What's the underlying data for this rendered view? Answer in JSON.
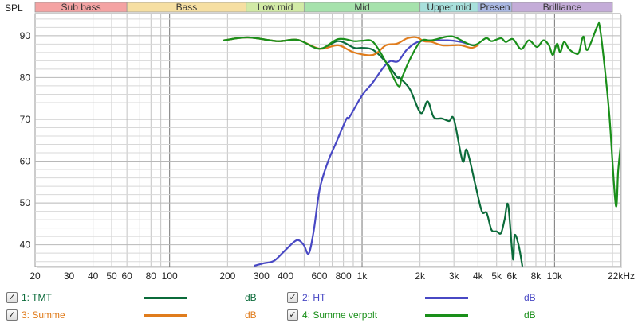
{
  "chart_data": {
    "type": "line",
    "ylabel": "SPL",
    "xscale": "log",
    "xlim": [
      20,
      22000
    ],
    "ylim": [
      34.8,
      95.3
    ],
    "grid": true,
    "x_ticks": [
      {
        "v": 20,
        "label": "20"
      },
      {
        "v": 30,
        "label": "30"
      },
      {
        "v": 40,
        "label": "40"
      },
      {
        "v": 50,
        "label": "50"
      },
      {
        "v": 60,
        "label": "60"
      },
      {
        "v": 80,
        "label": "80"
      },
      {
        "v": 100,
        "label": "100"
      },
      {
        "v": 200,
        "label": "200"
      },
      {
        "v": 300,
        "label": "300"
      },
      {
        "v": 400,
        "label": "400"
      },
      {
        "v": 600,
        "label": "600"
      },
      {
        "v": 800,
        "label": "800"
      },
      {
        "v": 1000,
        "label": "1k"
      },
      {
        "v": 2000,
        "label": "2k"
      },
      {
        "v": 3000,
        "label": "3k"
      },
      {
        "v": 4000,
        "label": "4k"
      },
      {
        "v": 5000,
        "label": "5k"
      },
      {
        "v": 6000,
        "label": "6k"
      },
      {
        "v": 8000,
        "label": "8k"
      },
      {
        "v": 10000,
        "label": "10k"
      },
      {
        "v": 22000,
        "label": "22kHz"
      }
    ],
    "y_ticks": [
      {
        "v": 90,
        "label": "90"
      },
      {
        "v": 80,
        "label": "80"
      },
      {
        "v": 70,
        "label": "70"
      },
      {
        "v": 60,
        "label": "60"
      },
      {
        "v": 50,
        "label": "50"
      },
      {
        "v": 40,
        "label": "40"
      }
    ],
    "bands": [
      {
        "name": "Sub bass",
        "from": 20,
        "to": 60,
        "color": "#f4a3a3"
      },
      {
        "name": "Bass",
        "from": 60,
        "to": 250,
        "color": "#f6dfa2"
      },
      {
        "name": "Low mid",
        "from": 250,
        "to": 500,
        "color": "#d2eaa6"
      },
      {
        "name": "Mid",
        "from": 500,
        "to": 2000,
        "color": "#a6e2ac"
      },
      {
        "name": "Upper mid",
        "from": 2000,
        "to": 4000,
        "color": "#a8e0dc"
      },
      {
        "name": "Presen",
        "from": 4000,
        "to": 6000,
        "color": "#aab8e2"
      },
      {
        "name": "Brilliance",
        "from": 6000,
        "to": 20000,
        "color": "#c4acd8"
      }
    ],
    "series": [
      {
        "name": "1: TMT",
        "unit": "dB",
        "color": "#0b6b3a",
        "checked": true,
        "points": [
          [
            192,
            88.9
          ],
          [
            255,
            89.6
          ],
          [
            363,
            88.7
          ],
          [
            463,
            89
          ],
          [
            602,
            86.9
          ],
          [
            751,
            88.7
          ],
          [
            910,
            87.1
          ],
          [
            1000,
            87.1
          ],
          [
            1140,
            86.6
          ],
          [
            1330,
            83.7
          ],
          [
            1520,
            80.1
          ],
          [
            1570,
            79.9
          ],
          [
            1770,
            77.2
          ],
          [
            2020,
            71.5
          ],
          [
            2190,
            74.3
          ],
          [
            2360,
            70.5
          ],
          [
            2600,
            70.2
          ],
          [
            2830,
            69.6
          ],
          [
            3000,
            70
          ],
          [
            3330,
            60
          ],
          [
            3500,
            62.7
          ],
          [
            3880,
            54.3
          ],
          [
            4190,
            48
          ],
          [
            4440,
            47.6
          ],
          [
            4700,
            43.6
          ],
          [
            5000,
            43.2
          ],
          [
            5270,
            42.8
          ],
          [
            5500,
            46
          ],
          [
            5740,
            49.5
          ],
          [
            6080,
            36.6
          ],
          [
            6200,
            42.3
          ],
          [
            6500,
            40
          ],
          [
            6800,
            35
          ]
        ]
      },
      {
        "name": "2: HT",
        "unit": "dB",
        "color": "#4848c4",
        "checked": true,
        "points": [
          [
            276,
            35
          ],
          [
            309,
            35.6
          ],
          [
            350,
            36.2
          ],
          [
            403,
            38.9
          ],
          [
            458,
            41.1
          ],
          [
            497,
            40
          ],
          [
            528,
            37.9
          ],
          [
            560,
            43.2
          ],
          [
            603,
            53.4
          ],
          [
            664,
            59.8
          ],
          [
            730,
            64.2
          ],
          [
            827,
            70
          ],
          [
            858,
            70.5
          ],
          [
            1000,
            75.7
          ],
          [
            1140,
            78.9
          ],
          [
            1290,
            82.4
          ],
          [
            1400,
            83.9
          ],
          [
            1540,
            83.9
          ],
          [
            1720,
            86.8
          ],
          [
            2020,
            88.7
          ],
          [
            2780,
            88.9
          ],
          [
            3270,
            88.5
          ],
          [
            3770,
            87.7
          ],
          [
            4000,
            87.7
          ]
        ]
      },
      {
        "name": "3: Summe",
        "unit": "dB",
        "color": "#e07c1c",
        "checked": true,
        "points": [
          [
            192,
            88.9
          ],
          [
            255,
            89.6
          ],
          [
            363,
            88.7
          ],
          [
            463,
            89
          ],
          [
            602,
            86.9
          ],
          [
            751,
            87.7
          ],
          [
            910,
            86
          ],
          [
            1140,
            85.4
          ],
          [
            1330,
            87.7
          ],
          [
            1520,
            88.1
          ],
          [
            1720,
            89.4
          ],
          [
            1930,
            89.6
          ],
          [
            2090,
            88.7
          ],
          [
            2300,
            88.5
          ],
          [
            2600,
            87.7
          ],
          [
            2970,
            87.7
          ],
          [
            3270,
            87.7
          ],
          [
            3700,
            87.1
          ],
          [
            4000,
            87.7
          ]
        ]
      },
      {
        "name": "4: Summe verpolt",
        "unit": "dB",
        "color": "#1a8f1a",
        "checked": true,
        "points": [
          [
            192,
            88.9
          ],
          [
            255,
            89.6
          ],
          [
            363,
            88.7
          ],
          [
            463,
            89
          ],
          [
            602,
            86.9
          ],
          [
            751,
            89.2
          ],
          [
            910,
            88.7
          ],
          [
            1000,
            88.8
          ],
          [
            1140,
            88.5
          ],
          [
            1330,
            83.7
          ],
          [
            1540,
            78
          ],
          [
            1610,
            79.9
          ],
          [
            1770,
            84.3
          ],
          [
            2020,
            88.7
          ],
          [
            2300,
            88.9
          ],
          [
            2780,
            89.8
          ],
          [
            3060,
            89.6
          ],
          [
            3770,
            87.7
          ],
          [
            4400,
            89.4
          ],
          [
            4700,
            88.7
          ],
          [
            5270,
            89.4
          ],
          [
            5580,
            88.5
          ],
          [
            6080,
            89.2
          ],
          [
            6700,
            86.8
          ],
          [
            7350,
            88.9
          ],
          [
            8100,
            87.3
          ],
          [
            8750,
            88.9
          ],
          [
            9350,
            87.7
          ],
          [
            9800,
            85.4
          ],
          [
            10300,
            88.1
          ],
          [
            10700,
            86
          ],
          [
            11200,
            88.5
          ],
          [
            11900,
            86.8
          ],
          [
            12800,
            85.8
          ],
          [
            13400,
            86
          ],
          [
            14100,
            89.8
          ],
          [
            14800,
            86.6
          ],
          [
            16700,
            92.3
          ],
          [
            17200,
            91.9
          ],
          [
            18200,
            82.7
          ],
          [
            19300,
            70.5
          ],
          [
            20800,
            49.5
          ],
          [
            21400,
            57.6
          ],
          [
            22000,
            63.3
          ]
        ]
      }
    ]
  }
}
